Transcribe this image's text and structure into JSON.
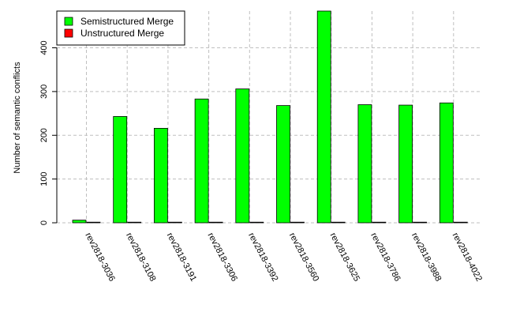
{
  "chart_data": {
    "type": "bar",
    "title": "",
    "xlabel": "",
    "ylabel": "Number of semantic conflicts",
    "categories": [
      "rev2818-3036",
      "rev2818-3108",
      "rev2818-3191",
      "rev2818-3306",
      "rev2818-3392",
      "rev2818-3560",
      "rev2818-3625",
      "rev2818-3786",
      "rev2818-3988",
      "rev2818-4022"
    ],
    "series": [
      {
        "name": "Semistructured Merge",
        "color": "#00ff00",
        "values": [
          6,
          243,
          216,
          283,
          306,
          268,
          484,
          270,
          269,
          274
        ]
      },
      {
        "name": "Unstructured Merge",
        "color": "#ff0000",
        "values": [
          0,
          0,
          0,
          0,
          0,
          0,
          0,
          0,
          0,
          0
        ]
      }
    ],
    "ylim": [
      0,
      484
    ],
    "yticks": [
      0,
      100,
      200,
      300,
      400
    ],
    "grid": true,
    "legend_position": "top-left"
  }
}
